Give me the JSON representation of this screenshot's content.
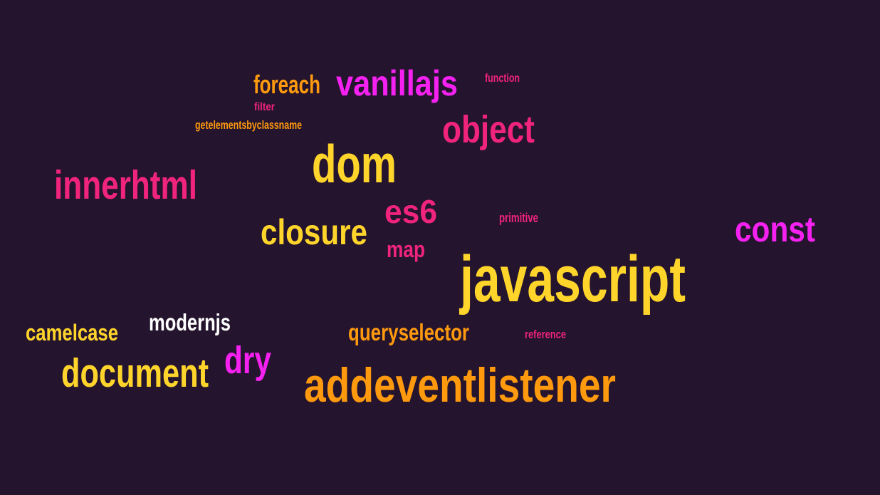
{
  "colors": {
    "background": "#24142e",
    "yellow": "#ffd52b",
    "orange": "#ff9a0e",
    "pink": "#f0247a",
    "magenta": "#f521f0",
    "white": "#ffffff"
  },
  "words": [
    {
      "text": "foreach",
      "color": "#ff9a0e"
    },
    {
      "text": "vanillajs",
      "color": "#f521f0"
    },
    {
      "text": "function",
      "color": "#f0247a"
    },
    {
      "text": "filter",
      "color": "#f0247a"
    },
    {
      "text": "getelementsbyclassname",
      "color": "#ff9a0e"
    },
    {
      "text": "object",
      "color": "#f0247a"
    },
    {
      "text": "dom",
      "color": "#ffd52b"
    },
    {
      "text": "innerhtml",
      "color": "#f0247a"
    },
    {
      "text": "es6",
      "color": "#f0247a"
    },
    {
      "text": "primitive",
      "color": "#f0247a"
    },
    {
      "text": "closure",
      "color": "#ffd52b"
    },
    {
      "text": "const",
      "color": "#f521f0"
    },
    {
      "text": "map",
      "color": "#f0247a"
    },
    {
      "text": "javascript",
      "color": "#ffd52b"
    },
    {
      "text": "modernjs",
      "color": "#ffffff"
    },
    {
      "text": "camelcase",
      "color": "#ffd52b"
    },
    {
      "text": "queryselector",
      "color": "#ff9a0e"
    },
    {
      "text": "reference",
      "color": "#f0247a"
    },
    {
      "text": "dry",
      "color": "#f521f0"
    },
    {
      "text": "document",
      "color": "#ffd52b"
    },
    {
      "text": "addeventlistener",
      "color": "#ff9a0e"
    }
  ]
}
